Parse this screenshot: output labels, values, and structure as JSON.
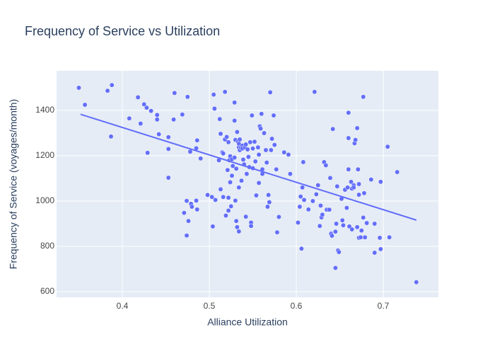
{
  "chart_data": {
    "type": "scatter",
    "title": "Frequency of Service vs Utilization",
    "x_label": "Alliance Utilization",
    "y_label": "Frequency of Service (voyages/month)",
    "xlim": [
      0.3244,
      0.7634
    ],
    "ylim": [
      575,
      1575
    ],
    "xticks": [
      0.4,
      0.5,
      0.6,
      0.7
    ],
    "yticks": [
      600,
      800,
      1000,
      1200,
      1400
    ],
    "grid": true,
    "background": "#e5ecf6",
    "series": [
      {
        "color": "#636efa",
        "mode": "markers",
        "x": [
          0.35,
          0.357,
          0.383,
          0.388,
          0.387,
          0.408,
          0.418,
          0.421,
          0.425,
          0.428,
          0.429,
          0.433,
          0.44,
          0.44,
          0.442,
          0.453,
          0.453,
          0.453,
          0.459,
          0.46,
          0.469,
          0.471,
          0.474,
          0.474,
          0.475,
          0.476,
          0.478,
          0.479,
          0.48,
          0.485,
          0.485,
          0.486,
          0.486,
          0.49,
          0.498,
          0.503,
          0.504,
          0.505,
          0.506,
          0.507,
          0.511,
          0.512,
          0.513,
          0.513,
          0.515,
          0.516,
          0.516,
          0.518,
          0.518,
          0.519,
          0.52,
          0.521,
          0.522,
          0.522,
          0.522,
          0.523,
          0.524,
          0.524,
          0.525,
          0.526,
          0.526,
          0.527,
          0.529,
          0.529,
          0.529,
          0.53,
          0.53,
          0.531,
          0.531,
          0.532,
          0.532,
          0.533,
          0.534,
          0.534,
          0.534,
          0.534,
          0.535,
          0.535,
          0.536,
          0.537,
          0.538,
          0.538,
          0.539,
          0.54,
          0.541,
          0.542,
          0.542,
          0.543,
          0.544,
          0.545,
          0.546,
          0.547,
          0.548,
          0.548,
          0.549,
          0.55,
          0.55,
          0.552,
          0.553,
          0.554,
          0.556,
          0.557,
          0.557,
          0.558,
          0.559,
          0.56,
          0.561,
          0.561,
          0.563,
          0.565,
          0.566,
          0.567,
          0.568,
          0.569,
          0.57,
          0.571,
          0.572,
          0.574,
          0.575,
          0.577,
          0.578,
          0.58,
          0.586,
          0.591,
          0.593,
          0.602,
          0.604,
          0.605,
          0.606,
          0.607,
          0.608,
          0.609,
          0.614,
          0.619,
          0.621,
          0.623,
          0.625,
          0.627,
          0.628,
          0.629,
          0.63,
          0.632,
          0.634,
          0.635,
          0.638,
          0.639,
          0.64,
          0.64,
          0.641,
          0.642,
          0.645,
          0.645,
          0.646,
          0.647,
          0.648,
          0.649,
          0.652,
          0.653,
          0.654,
          0.656,
          0.658,
          0.659,
          0.66,
          0.66,
          0.66,
          0.661,
          0.663,
          0.664,
          0.664,
          0.666,
          0.666,
          0.667,
          0.668,
          0.67,
          0.67,
          0.671,
          0.672,
          0.672,
          0.672,
          0.674,
          0.675,
          0.677,
          0.677,
          0.678,
          0.679,
          0.681,
          0.686,
          0.69,
          0.69,
          0.696,
          0.697,
          0.697,
          0.705,
          0.707,
          0.716,
          0.738
        ],
        "y": [
          1500,
          1425,
          1487,
          1512,
          1285,
          1365,
          1458,
          1342,
          1427,
          1412,
          1213,
          1398,
          1360,
          1380,
          1295,
          1230,
          1282,
          1103,
          1360,
          1477,
          1382,
          948,
          1001,
          848,
          1460,
          912,
          1218,
          988,
          975,
          1002,
          1233,
          1268,
          963,
          1188,
          1027,
          1018,
          888,
          1470,
          1408,
          1005,
          1180,
          1362,
          1297,
          1052,
          1215,
          1210,
          1018,
          1482,
          1272,
          936,
          1283,
          1137,
          1260,
          958,
          1015,
          1180,
          1198,
          1083,
          977,
          1112,
          1185,
          1155,
          1192,
          1355,
          1435,
          1270,
          1002,
          912,
          1143,
          885,
          1305,
          1262,
          1237,
          1253,
          866,
          1060,
          1272,
          1225,
          1236,
          1090,
          1245,
          1232,
          1183,
          1162,
          1237,
          931,
          1250,
          1120,
          1228,
          1195,
          1150,
          1260,
          905,
          890,
          1378,
          1232,
          1145,
          1262,
          1175,
          1025,
          1237,
          1080,
          1205,
          1330,
          1320,
          1385,
          1120,
          1140,
          1300,
          1225,
          1170,
          975,
          1027,
          995,
          1480,
          1225,
          1275,
          1378,
          1248,
          1140,
          862,
          930,
          1215,
          1205,
          1120,
          905,
          975,
          1020,
          790,
          1060,
          1172,
          1005,
          963,
          1000,
          1482,
          1030,
          1070,
          890,
          980,
          928,
          940,
          1172,
          1158,
          962,
          962,
          1102,
          858,
          855,
          847,
          1318,
          705,
          865,
          900,
          1065,
          782,
          775,
          1010,
          915,
          893,
          1050,
          970,
          1060,
          1390,
          1140,
          1278,
          888,
          1085,
          875,
          1055,
          1070,
          1060,
          1255,
          1270,
          1322,
          885,
          1140,
          1075,
          1028,
          838,
          840,
          870,
          1460,
          927,
          1035,
          840,
          903,
          1095,
          772,
          900,
          838,
          1085,
          788,
          1240,
          840,
          1128,
          642
        ]
      },
      {
        "color": "#636efa",
        "mode": "lines",
        "x": [
          0.352,
          0.738
        ],
        "y": [
          1383,
          916
        ]
      }
    ]
  }
}
